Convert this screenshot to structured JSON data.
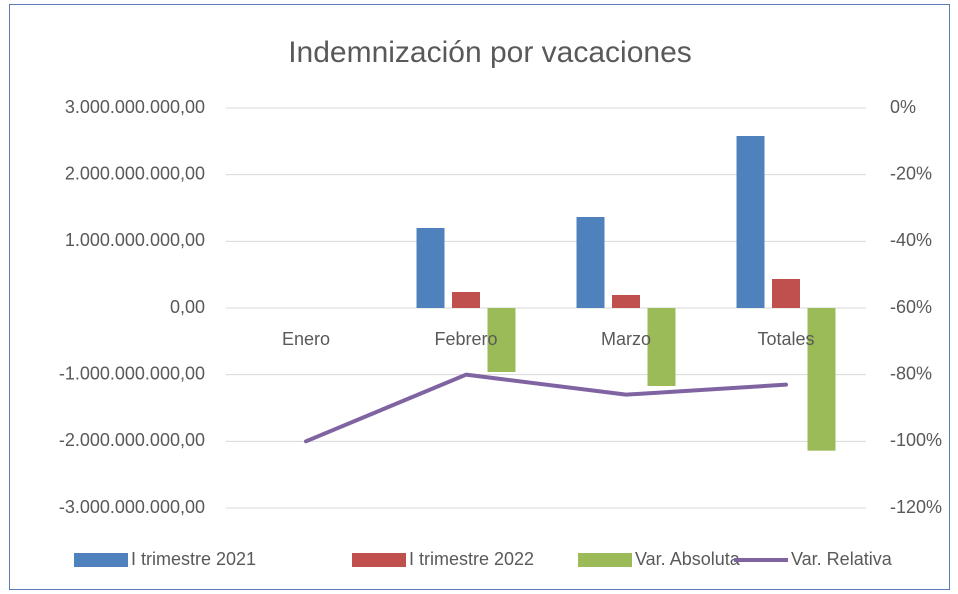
{
  "chart_data": {
    "type": "bar",
    "title": "Indemnización por vacaciones",
    "categories": [
      "Enero",
      "Febrero",
      "Marzo",
      "Totales"
    ],
    "series": [
      {
        "name": "I trimestre 2021",
        "color": "#4f81bd",
        "values": [
          0,
          1200000000,
          1365000000,
          2580000000
        ]
      },
      {
        "name": "I trimestre 2022",
        "color": "#c0504d",
        "values": [
          0,
          240000000,
          195000000,
          435000000
        ]
      },
      {
        "name": "Var. Absoluta",
        "color": "#9bbb59",
        "values": [
          0,
          -960000000,
          -1170000000,
          -2140000000
        ]
      },
      {
        "name": "Var. Relativa",
        "color": "#8064a2",
        "type": "line",
        "axis": "y2",
        "values": [
          -100,
          -80,
          -86,
          -83
        ]
      }
    ],
    "ylim": [
      -3000000000,
      3000000000
    ],
    "yticks": [
      {
        "value": 3000000000,
        "label": "3.000.000.000,00"
      },
      {
        "value": 2000000000,
        "label": "2.000.000.000,00"
      },
      {
        "value": 1000000000,
        "label": "1.000.000.000,00"
      },
      {
        "value": 0,
        "label": "0,00"
      },
      {
        "value": -1000000000,
        "label": "-1.000.000.000,00"
      },
      {
        "value": -2000000000,
        "label": "-2.000.000.000,00"
      },
      {
        "value": -3000000000,
        "label": "-3.000.000.000,00"
      }
    ],
    "y2lim": [
      -120,
      0
    ],
    "y2ticks": [
      {
        "value": 0,
        "label": "0%"
      },
      {
        "value": -20,
        "label": "-20%"
      },
      {
        "value": -40,
        "label": "-40%"
      },
      {
        "value": -60,
        "label": "-60%"
      },
      {
        "value": -80,
        "label": "-80%"
      },
      {
        "value": -100,
        "label": "-100%"
      },
      {
        "value": -120,
        "label": "-120%"
      }
    ],
    "grid": true,
    "legend": "bottom"
  }
}
